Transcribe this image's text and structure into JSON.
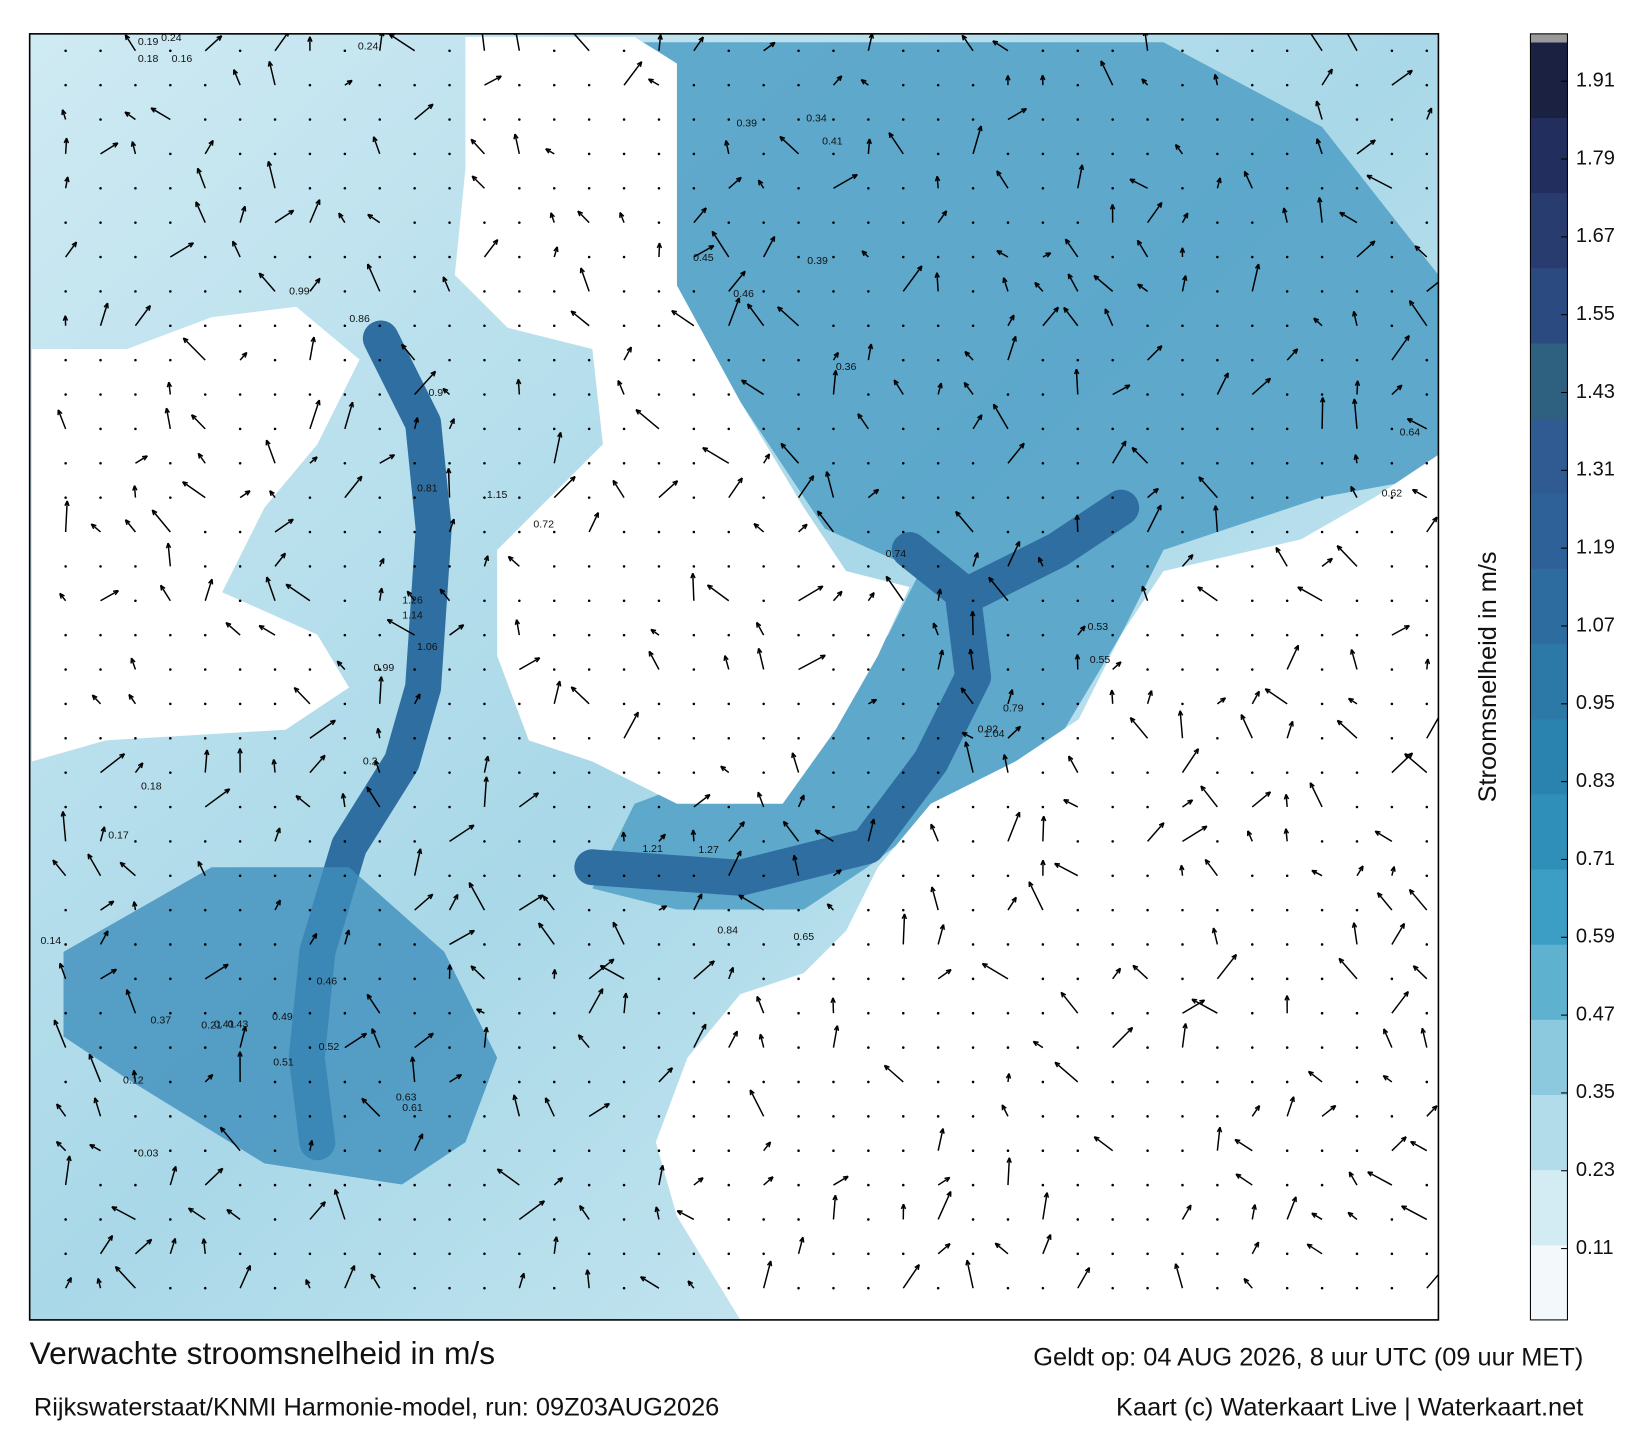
{
  "header": {
    "title": "Verwachte stroomsnelheid in m/s",
    "subtitle": "Rijkswaterstaat/KNMI Harmonie-model, run: 09Z03AUG2026",
    "valid_time": "Geldt op: 04 AUG 2026, 8 uur UTC (09 uur MET)",
    "credit": "Kaart (c) Waterkaart Live | Waterkaart.net"
  },
  "map": {
    "speed_labels": [
      0.19,
      0.24,
      0.18,
      0.16,
      0.24,
      0.99,
      0.86,
      0.9,
      0.81,
      1.15,
      0.72,
      1.26,
      1.14,
      1.06,
      0.99,
      0.61,
      0.63,
      0.17,
      0.14,
      0.12,
      0.45,
      0.39,
      0.46,
      0.41,
      0.39,
      0.36,
      0.34,
      0.74,
      0.79,
      1.04,
      0.92,
      1.27,
      1.21,
      0.84,
      0.65,
      0.49,
      0.52,
      0.46,
      0.51,
      0.37,
      0.41,
      0.43,
      0.2,
      0.03,
      0.18,
      0.21,
      0.64,
      0.62,
      0.53,
      0.55
    ]
  },
  "colorbar": {
    "label": "Stroomsnelheid in m/s",
    "lim": [
      0,
      1.97
    ],
    "ticks": [
      0.11,
      0.23,
      0.35,
      0.47,
      0.59,
      0.71,
      0.83,
      0.95,
      1.07,
      1.19,
      1.31,
      1.43,
      1.55,
      1.67,
      1.79,
      1.91
    ],
    "colors": [
      "#f3f9fb",
      "#d3ebf3",
      "#b3dcea",
      "#8cc9de",
      "#5fb1d0",
      "#3c9ec4",
      "#2f8fb8",
      "#2a83ae",
      "#2c78a6",
      "#2d6c9f",
      "#2e6198",
      "#2f5b92",
      "#2d617f",
      "#2b4a80",
      "#283c70",
      "#222e5d",
      "#1b2140"
    ]
  }
}
